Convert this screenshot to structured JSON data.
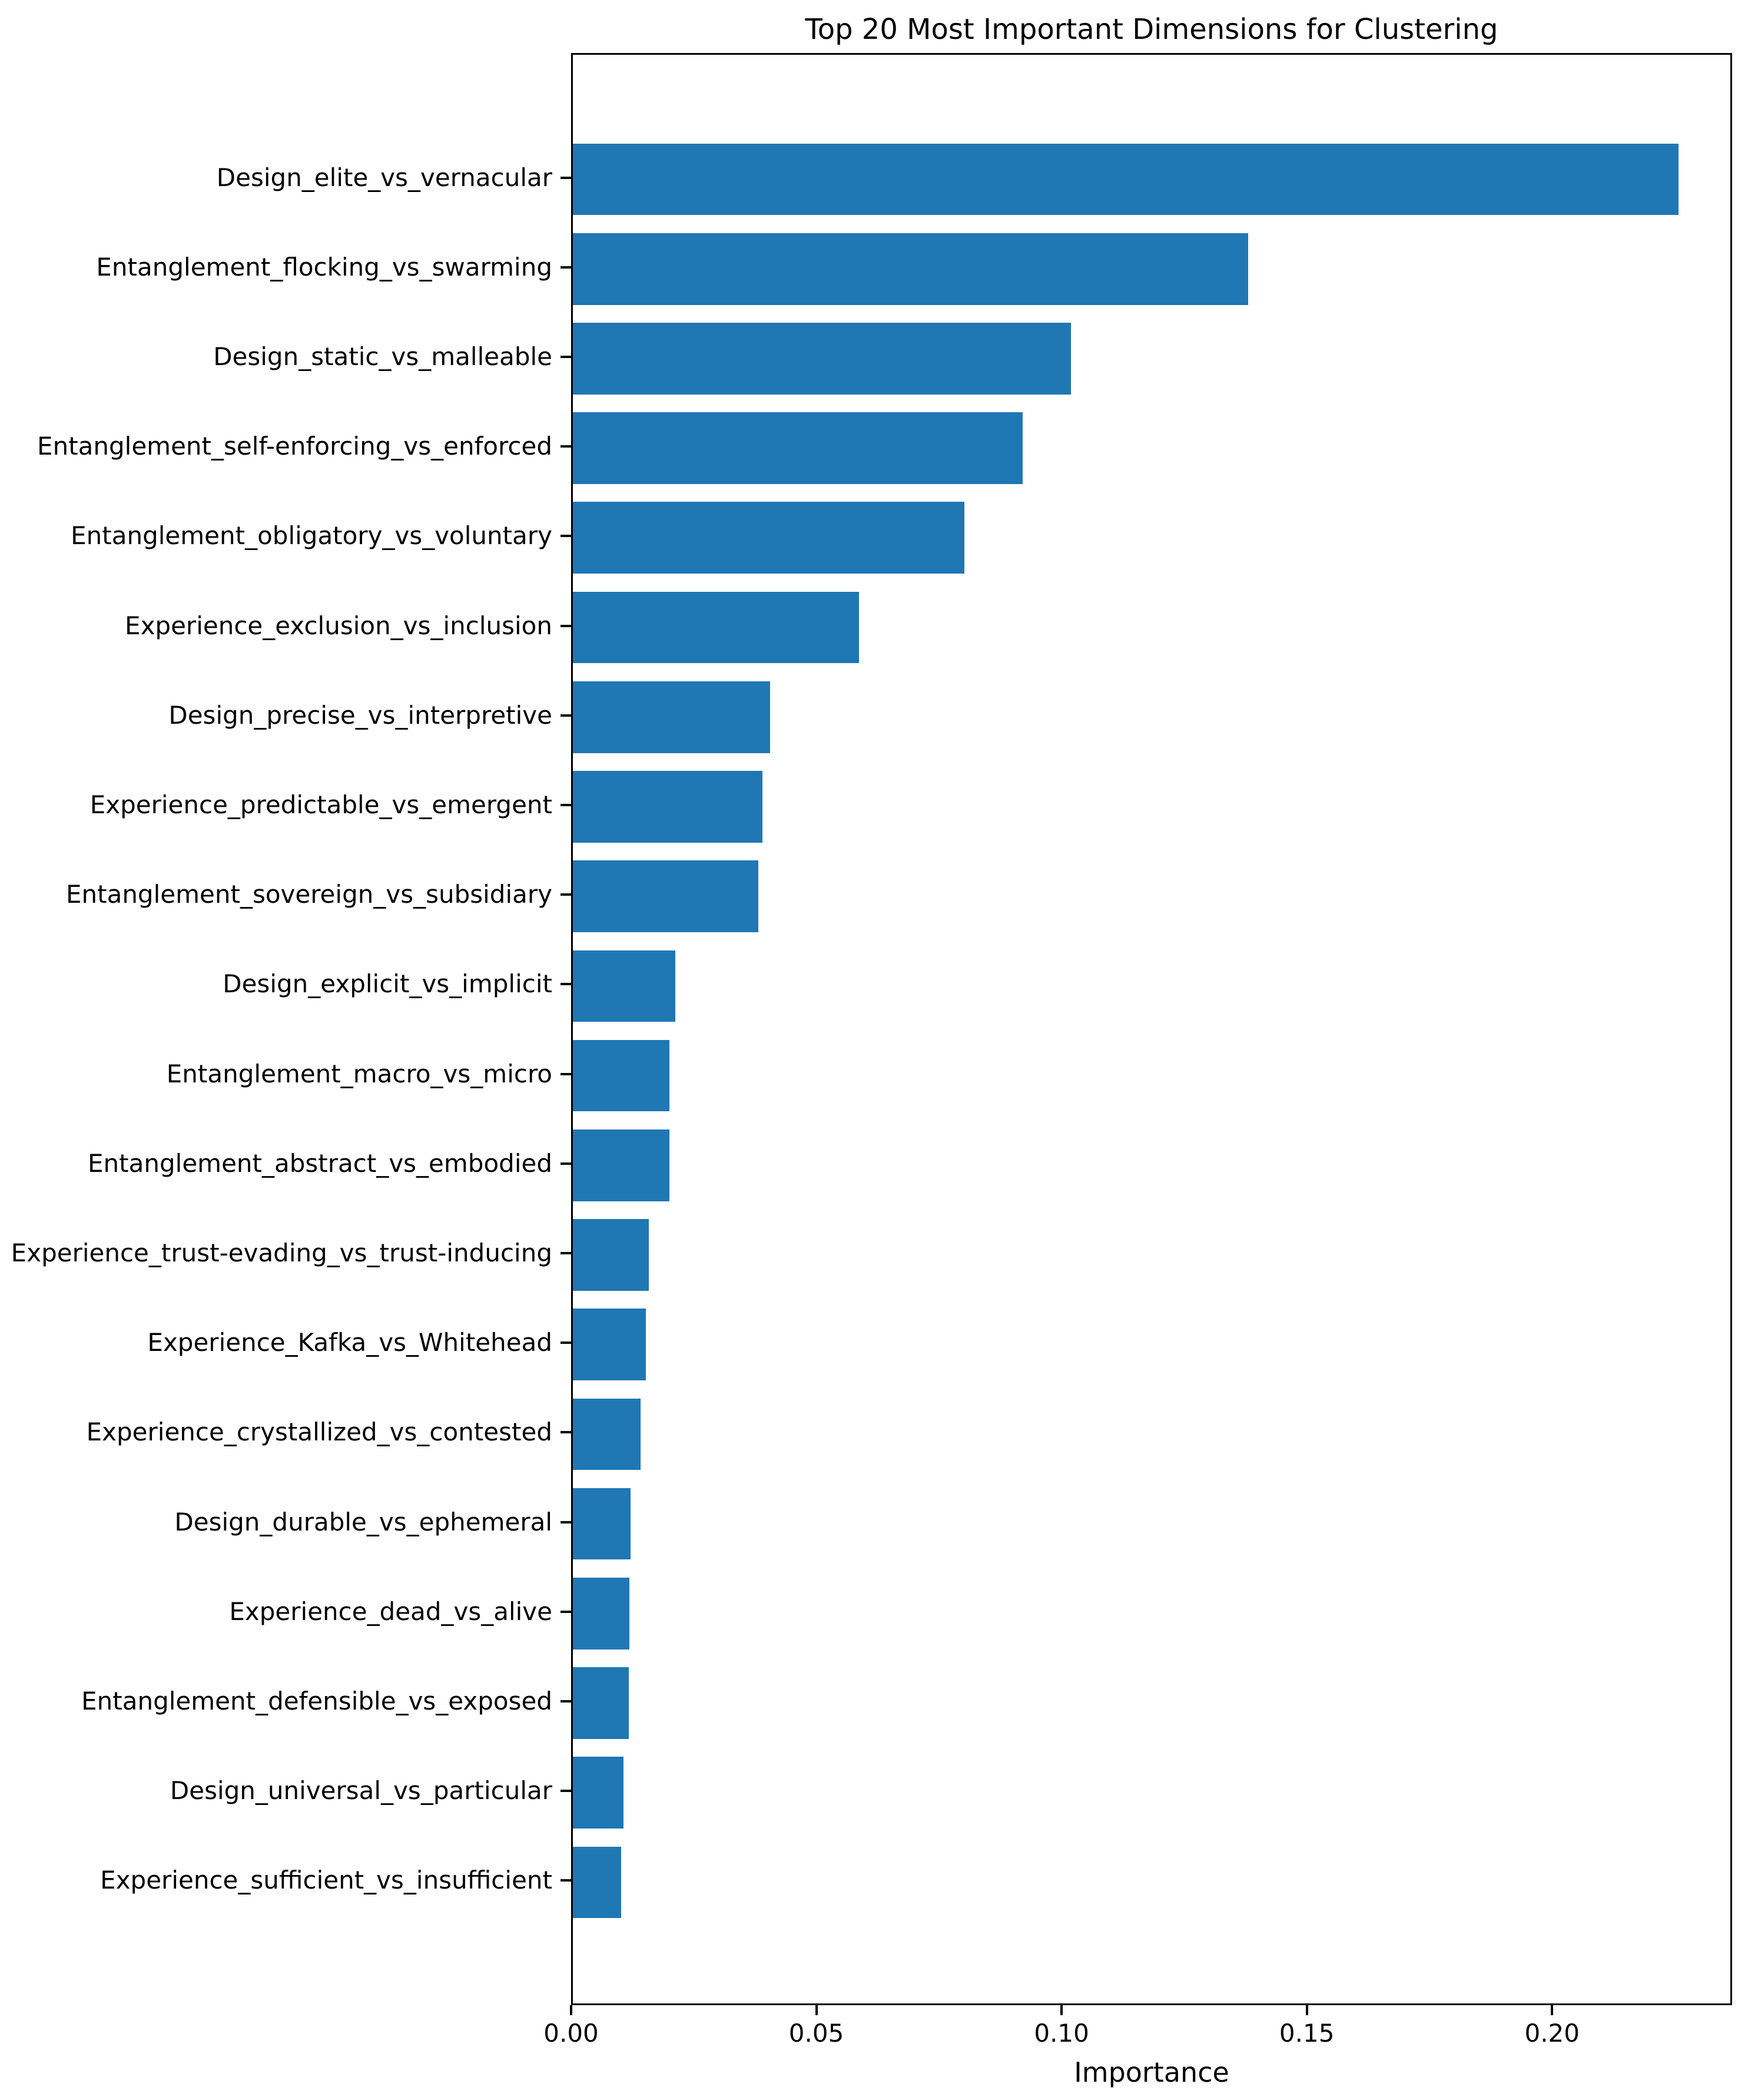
{
  "chart_data": {
    "type": "bar",
    "orientation": "horizontal",
    "title": "Top 20 Most Important Dimensions for Clustering",
    "xlabel": "Importance",
    "ylabel": "",
    "categories": [
      "Design_elite_vs_vernacular",
      "Entanglement_flocking_vs_swarming",
      "Design_static_vs_malleable",
      "Entanglement_self-enforcing_vs_enforced",
      "Entanglement_obligatory_vs_voluntary",
      "Experience_exclusion_vs_inclusion",
      "Design_precise_vs_interpretive",
      "Experience_predictable_vs_emergent",
      "Entanglement_sovereign_vs_subsidiary",
      "Design_explicit_vs_implicit",
      "Entanglement_macro_vs_micro",
      "Entanglement_abstract_vs_embodied",
      "Experience_trust-evading_vs_trust-inducing",
      "Experience_Kafka_vs_Whitehead",
      "Experience_crystallized_vs_contested",
      "Design_durable_vs_ephemeral",
      "Experience_dead_vs_alive",
      "Entanglement_defensible_vs_exposed",
      "Design_universal_vs_particular",
      "Experience_sufficient_vs_insufficient"
    ],
    "values": [
      0.2254,
      0.1377,
      0.1015,
      0.0917,
      0.0798,
      0.0583,
      0.0402,
      0.0387,
      0.0378,
      0.0209,
      0.0197,
      0.0197,
      0.0155,
      0.0149,
      0.0138,
      0.0118,
      0.0115,
      0.0114,
      0.0103,
      0.0099
    ],
    "xlim": [
      0,
      0.2367
    ],
    "xticks": [
      0.0,
      0.05,
      0.1,
      0.15,
      0.2
    ],
    "xtick_labels": [
      "0.00",
      "0.05",
      "0.10",
      "0.15",
      "0.20"
    ],
    "bar_color": "#1f77b4",
    "grid": false,
    "legend_position": "none"
  }
}
